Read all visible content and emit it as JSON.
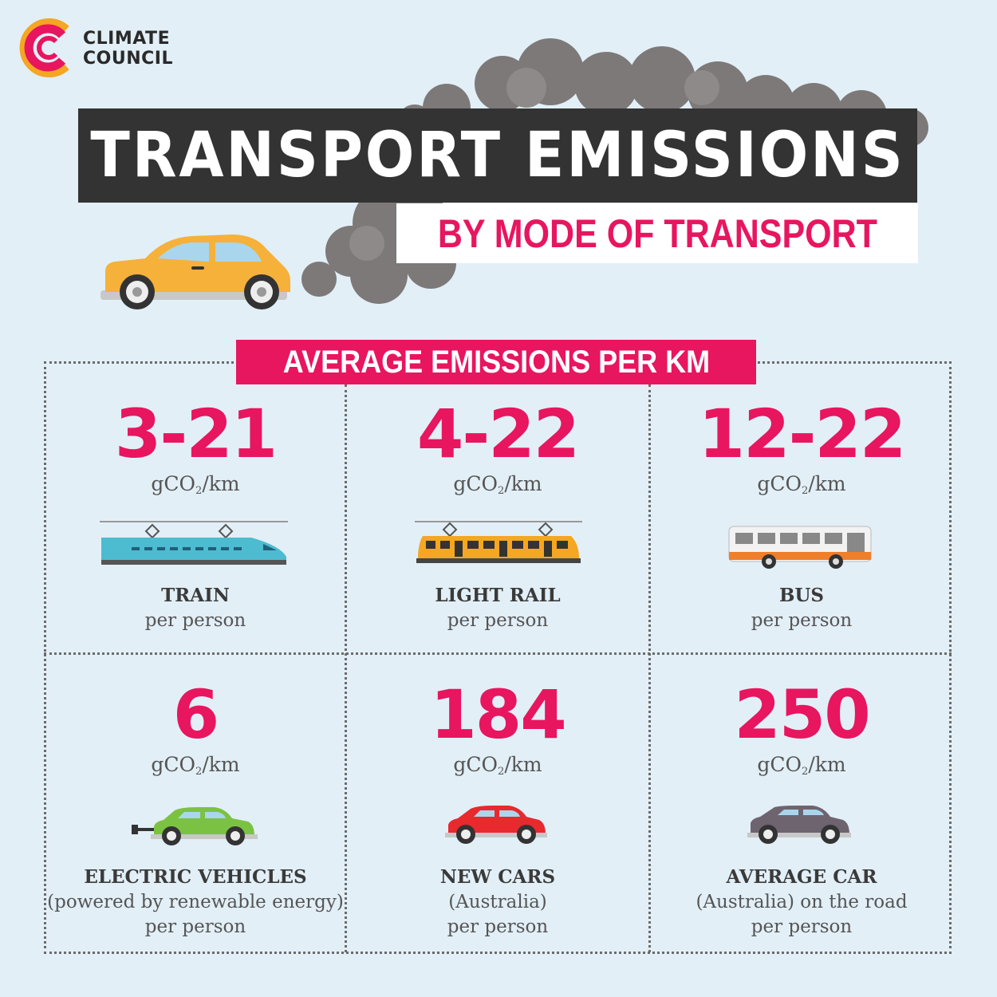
{
  "brand": {
    "line1": "CLIMATE",
    "line2": "COUNCIL"
  },
  "headline": {
    "title": "TRANSPORT EMISSIONS",
    "subtitle": "BY MODE OF TRANSPORT"
  },
  "section_label": "AVERAGE EMISSIONS PER KM",
  "unit": {
    "prefix": "gCO",
    "subscript": "2",
    "suffix": "/km"
  },
  "modes": [
    {
      "value": "3-21",
      "name": "TRAIN",
      "desc": [
        "per person"
      ]
    },
    {
      "value": "4-22",
      "name": "LIGHT RAIL",
      "desc": [
        "per person"
      ]
    },
    {
      "value": "12-22",
      "name": "BUS",
      "desc": [
        "per person"
      ]
    },
    {
      "value": "6",
      "name": "ELECTRIC VEHICLES",
      "desc": [
        "(powered by renewable energy)",
        "per person"
      ]
    },
    {
      "value": "184",
      "name": "NEW CARS",
      "desc": [
        "(Australia)",
        "per person"
      ]
    },
    {
      "value": "250",
      "name": "AVERAGE CAR",
      "desc": [
        "(Australia) on the road",
        "per person"
      ]
    }
  ],
  "colors": {
    "accent": "#e8155f",
    "background": "#e2eff7",
    "title_bar": "#333333",
    "train": "#4dbbd0",
    "light_rail": "#f5a623",
    "bus_stripe": "#f07f2b",
    "ev": "#7cc242",
    "new_car": "#e8292e",
    "average_car": "#6e6470"
  },
  "icons": [
    "climate-council-logo-icon",
    "car-exhaust-icon",
    "smoke-cloud-icon",
    "train-icon",
    "light-rail-icon",
    "bus-icon",
    "electric-car-icon",
    "new-car-icon",
    "average-car-icon"
  ]
}
